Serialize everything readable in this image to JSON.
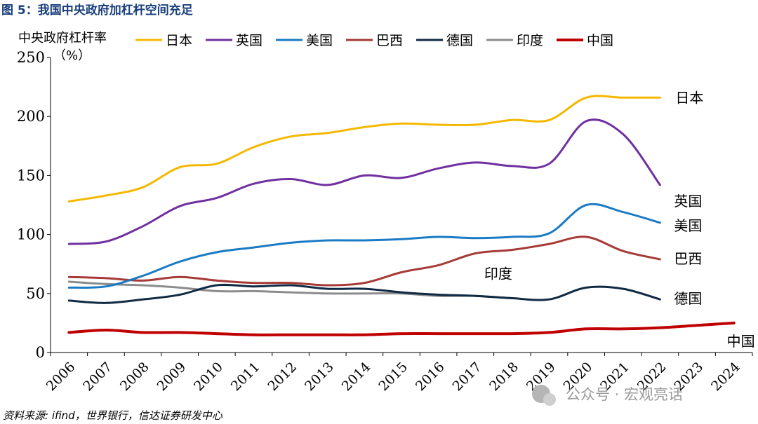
{
  "figure_title": "图 5：我国中央政府加杠杆空间充足",
  "source_note": "资料来源: ifind，世界银行，信达证券研发中心",
  "watermark": "公众号 · 宏观亮话",
  "chart_data": {
    "type": "line",
    "title": "",
    "ylabel": "中央政府杠杆率",
    "yunit": "（%）",
    "ylim": [
      0,
      250
    ],
    "yticks": [
      0,
      50,
      100,
      150,
      200,
      250
    ],
    "xlabel": "",
    "x": [
      "2006",
      "2007",
      "2008",
      "2009",
      "2010",
      "2011",
      "2012",
      "2013",
      "2014",
      "2015",
      "2016",
      "2017",
      "2018",
      "2019",
      "2020",
      "2021",
      "2022",
      "2023",
      "2024"
    ],
    "grid": false,
    "legend": "top",
    "series": [
      {
        "name": "日本",
        "color": "#f5b800",
        "values": [
          128,
          133,
          140,
          157,
          160,
          174,
          183,
          186,
          191,
          194,
          193,
          193,
          197,
          197,
          216,
          216,
          216,
          null,
          null
        ]
      },
      {
        "name": "英国",
        "color": "#7030a0",
        "values": [
          92,
          94,
          107,
          124,
          131,
          143,
          147,
          142,
          150,
          148,
          156,
          161,
          158,
          160,
          196,
          185,
          142,
          null,
          null
        ]
      },
      {
        "name": "美国",
        "color": "#1a7bc4",
        "values": [
          55,
          56,
          65,
          77,
          85,
          89,
          93,
          95,
          95,
          96,
          98,
          97,
          98,
          101,
          125,
          119,
          110,
          null,
          null
        ]
      },
      {
        "name": "巴西",
        "color": "#a63a36",
        "values": [
          64,
          63,
          61,
          64,
          61,
          59,
          59,
          57,
          59,
          68,
          74,
          84,
          87,
          92,
          98,
          86,
          79,
          null,
          null
        ]
      },
      {
        "name": "德国",
        "color": "#102a44",
        "values": [
          44,
          42,
          45,
          49,
          57,
          56,
          57,
          54,
          54,
          51,
          49,
          48,
          46,
          45,
          55,
          54,
          45,
          null,
          null
        ]
      },
      {
        "name": "印度",
        "color": "#8c8c8c",
        "values": [
          60,
          58,
          57,
          55,
          52,
          52,
          51,
          50,
          50,
          50,
          48,
          48,
          46,
          null,
          null,
          null,
          null,
          null,
          null
        ]
      },
      {
        "name": "中国",
        "color": "#c00000",
        "values": [
          17,
          19,
          17,
          17,
          16,
          15,
          15,
          15,
          15,
          16,
          16,
          16,
          16,
          17,
          20,
          20,
          21,
          23,
          25
        ]
      }
    ],
    "end_labels": [
      {
        "text": "日本",
        "series": "日本"
      },
      {
        "text": "英国",
        "series": "英国"
      },
      {
        "text": "美国",
        "series": "美国"
      },
      {
        "text": "巴西",
        "series": "巴西"
      },
      {
        "text": "印度",
        "series": "印度"
      },
      {
        "text": "德国",
        "series": "德国"
      },
      {
        "text": "中国",
        "series": "中国"
      }
    ]
  }
}
